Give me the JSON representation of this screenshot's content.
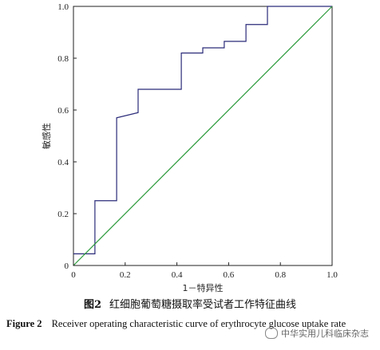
{
  "chart_data": {
    "type": "line",
    "xlabel": "1－特异性",
    "ylabel": "敏感性",
    "xlim": [
      0,
      1
    ],
    "ylim": [
      0,
      1
    ],
    "xticks": [
      0,
      0.2,
      0.4,
      0.6,
      0.8,
      1.0
    ],
    "xtick_labels": [
      "0",
      "0.2",
      "0.4",
      "0.6",
      "0.8",
      "1.0"
    ],
    "yticks": [
      0,
      0.2,
      0.4,
      0.6,
      0.8,
      1.0
    ],
    "ytick_labels": [
      "0",
      "0.2",
      "0.4",
      "0.6",
      "0.8",
      "1.0"
    ],
    "grid": false,
    "series": [
      {
        "color": "#2b2b7a",
        "x": [
          0,
          0.083,
          0.083,
          0.083,
          0.167,
          0.167,
          0.25,
          0.25,
          0.417,
          0.417,
          0.5,
          0.5,
          0.583,
          0.583,
          0.667,
          0.667,
          0.75,
          0.75,
          1.0
        ],
        "y": [
          0.045,
          0.045,
          0.09,
          0.25,
          0.25,
          0.57,
          0.59,
          0.68,
          0.68,
          0.82,
          0.82,
          0.84,
          0.84,
          0.865,
          0.865,
          0.93,
          0.93,
          1.0,
          1.0
        ]
      },
      {
        "color": "#2a9a3a",
        "x": [
          0,
          1
        ],
        "y": [
          0,
          1
        ]
      }
    ]
  },
  "caption": {
    "cn_figure": "图2",
    "cn_text": "红细胞葡萄糖摄取率受试者工作特征曲线",
    "en_figure": "Figure 2",
    "en_text": "Receiver operating characteristic curve of erythrocyte glucose uptake rate"
  },
  "watermark": {
    "text": "中华实用儿科临床杂志"
  }
}
